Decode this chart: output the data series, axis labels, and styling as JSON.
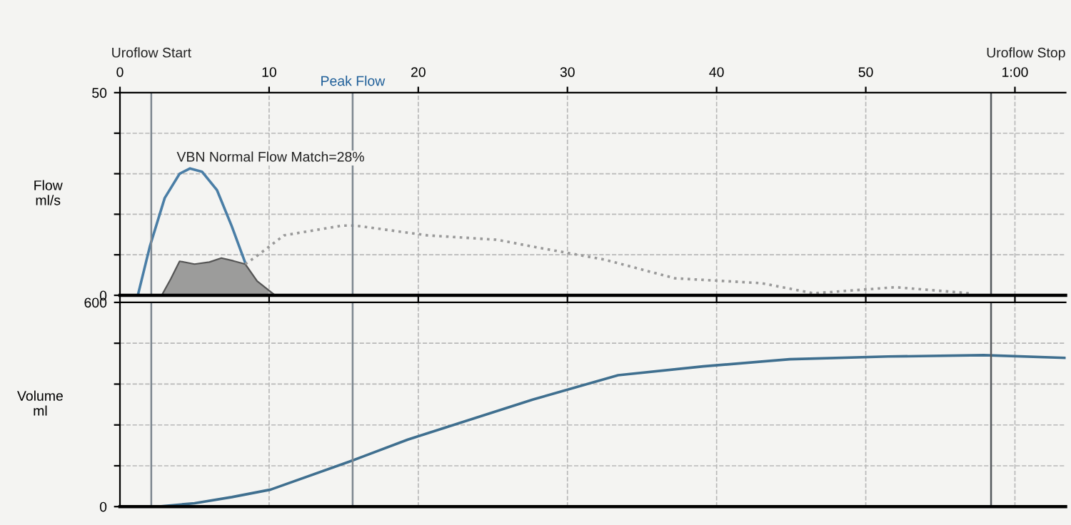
{
  "chart_data": [
    {
      "type": "line",
      "ylabel": "Flow\nml/s",
      "annotations": [
        "VBN Normal Flow Match=28%"
      ],
      "xlim": [
        0,
        63.4
      ],
      "xticks": [
        0,
        10,
        20,
        30,
        40,
        50,
        {
          "value": 60,
          "label": "1:00"
        }
      ],
      "ylim": [
        0,
        50
      ],
      "yticks": [
        0,
        {
          "value": 10,
          "label": null
        },
        {
          "value": 20,
          "label": null
        },
        {
          "value": 30,
          "label": null
        },
        {
          "value": 40,
          "label": null
        },
        50
      ],
      "grid": true,
      "ref_lines": [
        {
          "axis": "x",
          "value": 2.1,
          "label": "Uroflow Start",
          "color": "#7d8790"
        },
        {
          "axis": "x",
          "value": 15.6,
          "label": "Peak Flow",
          "color": "#7d8790"
        },
        {
          "axis": "x",
          "value": 58.4,
          "label": "Uroflow Stop",
          "color": "#55595e"
        }
      ],
      "series": [
        {
          "color": "#4a7ea6",
          "x": [
            1.2,
            2,
            3,
            4,
            4.7,
            5.5,
            6.5,
            7.5,
            8.4
          ],
          "values": [
            0,
            12,
            24,
            30,
            31.3,
            30.5,
            26,
            17,
            8
          ]
        },
        {
          "type": "area",
          "color": "#8c8c8c",
          "x": [
            2.8,
            3.4,
            4.0,
            5.0,
            6.0,
            6.8,
            7.6,
            8.4,
            9.2,
            10.4
          ],
          "values": [
            0,
            4,
            8.4,
            7.7,
            8.2,
            9.2,
            8.5,
            7.7,
            3.5,
            0
          ]
        },
        {
          "color": "#9a9a9a",
          "line_style": "dotted",
          "x": [
            8.4,
            9.1,
            11,
            14.9,
            15.8,
            20.6,
            25.3,
            27.7,
            32.5,
            37.2,
            43,
            46.5,
            52,
            57
          ],
          "values": [
            7.7,
            9.5,
            14.8,
            17.2,
            17.2,
            14.8,
            13.7,
            12,
            8.8,
            4.2,
            3,
            0.5,
            2,
            0.5
          ]
        }
      ]
    },
    {
      "type": "line",
      "ylabel": "Volume\nml",
      "tick_labels": "y",
      "xlim": [
        0,
        63.4
      ],
      "xticks": [
        0,
        10,
        20,
        30,
        40,
        50,
        60
      ],
      "ylim": [
        0,
        600
      ],
      "yticks": [
        0,
        {
          "value": 120,
          "label": null
        },
        {
          "value": 240,
          "label": null
        },
        {
          "value": 360,
          "label": null
        },
        {
          "value": 480,
          "label": null
        },
        600
      ],
      "grid": true,
      "ref_lines": [
        {
          "axis": "x",
          "value": 2.1,
          "color": "#7d8790"
        },
        {
          "axis": "x",
          "value": 15.6,
          "color": "#7d8790"
        },
        {
          "axis": "x",
          "value": 58.4,
          "color": "#55595e"
        }
      ],
      "series": [
        {
          "color": "#3f6f8f",
          "x": [
            0,
            2.5,
            5,
            7.5,
            10.1,
            15.5,
            19.3,
            27.7,
            33.4,
            39.1,
            44.9,
            51.5,
            57.9,
            63.4
          ],
          "values": [
            0,
            0,
            10,
            28,
            50,
            134,
            197,
            315,
            386,
            412,
            433,
            441,
            445,
            437
          ]
        }
      ]
    }
  ]
}
